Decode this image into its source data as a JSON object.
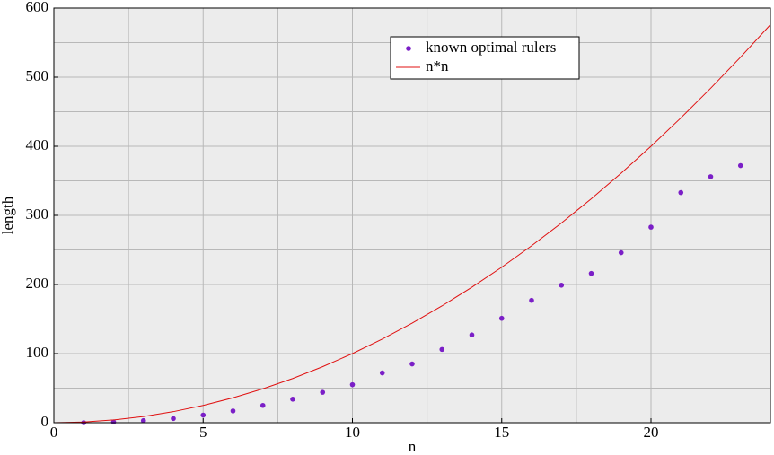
{
  "chart_data": {
    "type": "scatter",
    "x_label": "n",
    "y_label": "length",
    "xlim": [
      0,
      24
    ],
    "ylim": [
      0,
      600
    ],
    "xticks": [
      0,
      5,
      10,
      15,
      20
    ],
    "yticks": [
      0,
      100,
      200,
      300,
      400,
      500,
      600
    ],
    "grid": true,
    "legend": "top-center",
    "series": [
      {
        "name": "known optimal rulers",
        "color": "#7b1fc7",
        "kind": "points",
        "x": [
          1,
          2,
          3,
          4,
          5,
          6,
          7,
          8,
          9,
          10,
          11,
          12,
          13,
          14,
          15,
          16,
          17,
          18,
          19,
          20,
          21,
          22,
          23
        ],
        "values": [
          0,
          1,
          3,
          6,
          11,
          17,
          25,
          34,
          44,
          55,
          72,
          85,
          106,
          127,
          151,
          177,
          199,
          216,
          246,
          283,
          333,
          356,
          372
        ]
      },
      {
        "name": "n*n",
        "color": "#e01010",
        "kind": "line",
        "x": [
          0,
          1,
          2,
          3,
          4,
          5,
          6,
          7,
          8,
          9,
          10,
          11,
          12,
          13,
          14,
          15,
          16,
          17,
          18,
          19,
          20,
          21,
          22,
          23,
          24
        ],
        "values": [
          0,
          1,
          4,
          9,
          16,
          25,
          36,
          49,
          64,
          81,
          100,
          121,
          144,
          169,
          196,
          225,
          256,
          289,
          324,
          361,
          400,
          441,
          484,
          529,
          576
        ]
      }
    ]
  }
}
